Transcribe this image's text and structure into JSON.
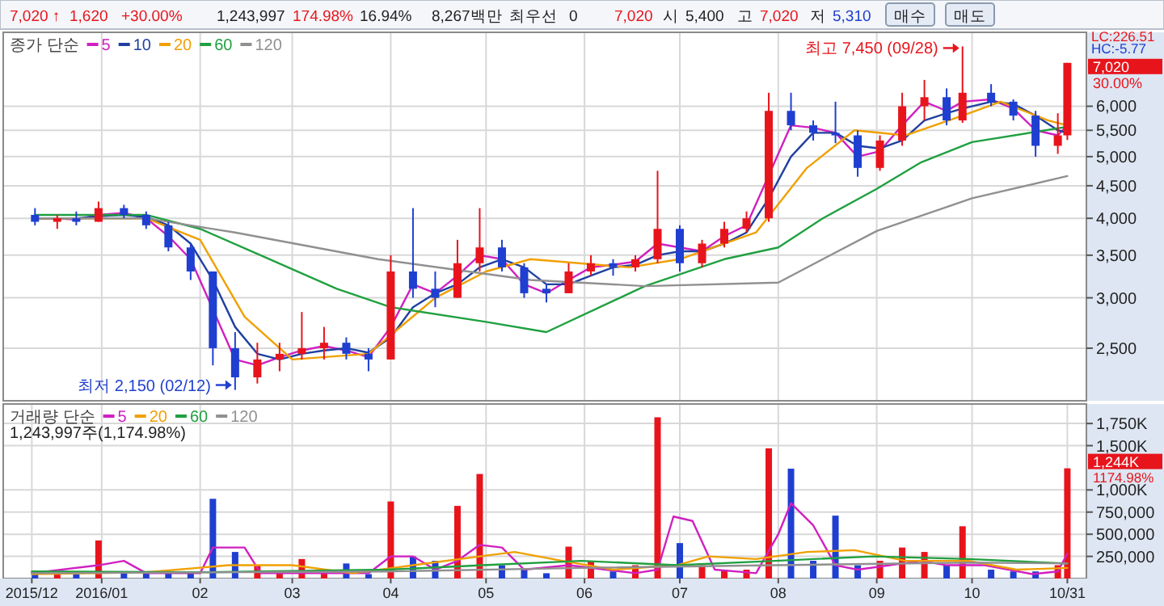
{
  "chart_data": [
    {
      "type": "candlestick",
      "legend_title": "종가 단순",
      "legend": "top left",
      "grid": true,
      "log": true,
      "tick_labels": "y",
      "xlim": [
        "2015-12-01",
        "2016-11-06"
      ],
      "xticks": [
        {
          "value": "2016-01-01",
          "label": null
        },
        {
          "value": "2016-02-01",
          "label": null
        },
        {
          "value": "2016-03-01",
          "label": null
        },
        {
          "value": "2016-04-01",
          "label": null
        },
        {
          "value": "2016-05-01",
          "label": null
        },
        {
          "value": "2016-06-01",
          "label": null
        },
        {
          "value": "2016-07-01",
          "label": null
        },
        {
          "value": "2016-08-01",
          "label": null
        },
        {
          "value": "2016-09-01",
          "label": null
        },
        {
          "value": "2016-10-01",
          "label": null
        }
      ],
      "ylim": [
        2067,
        7840
      ],
      "yticks": [
        {
          "value": 2500,
          "label": "2,500"
        },
        {
          "value": 3000,
          "label": "3,000"
        },
        {
          "value": 3500,
          "label": "3,500"
        },
        {
          "value": 4000,
          "label": "4,000"
        },
        {
          "value": 4500,
          "label": "4,500"
        },
        {
          "value": 5000,
          "label": "5,000"
        },
        {
          "value": 5500,
          "label": "5,500"
        },
        {
          "value": 6000,
          "label": "6,000"
        }
      ],
      "x": [
        "2015-12-11",
        "2015-12-18",
        "2015-12-24",
        "2015-12-31",
        "2016-01-08",
        "2016-01-15",
        "2016-01-22",
        "2016-01-29",
        "2016-02-05",
        "2016-02-12",
        "2016-02-19",
        "2016-02-26",
        "2016-03-04",
        "2016-03-11",
        "2016-03-18",
        "2016-03-25",
        "2016-04-01",
        "2016-04-08",
        "2016-04-15",
        "2016-04-22",
        "2016-04-29",
        "2016-05-06",
        "2016-05-13",
        "2016-05-20",
        "2016-05-27",
        "2016-06-03",
        "2016-06-10",
        "2016-06-17",
        "2016-06-24",
        "2016-07-01",
        "2016-07-08",
        "2016-07-15",
        "2016-07-22",
        "2016-07-29",
        "2016-08-05",
        "2016-08-12",
        "2016-08-19",
        "2016-08-26",
        "2016-09-02",
        "2016-09-09",
        "2016-09-16",
        "2016-09-23",
        "2016-09-28",
        "2016-10-07",
        "2016-10-14",
        "2016-10-21",
        "2016-10-28",
        "2016-10-31"
      ],
      "ohlc": [
        [
          4050,
          4150,
          3900,
          3950
        ],
        [
          3950,
          4050,
          3850,
          4000
        ],
        [
          4000,
          4100,
          3900,
          3950
        ],
        [
          3950,
          4250,
          3950,
          4150
        ],
        [
          4150,
          4200,
          4000,
          4050
        ],
        [
          4050,
          4100,
          3850,
          3900
        ],
        [
          3900,
          3950,
          3550,
          3600
        ],
        [
          3600,
          3650,
          3200,
          3300
        ],
        [
          3300,
          3300,
          2350,
          2500
        ],
        [
          2500,
          2650,
          2150,
          2250
        ],
        [
          2250,
          2550,
          2200,
          2400
        ],
        [
          2400,
          2550,
          2300,
          2450
        ],
        [
          2450,
          2850,
          2400,
          2500
        ],
        [
          2500,
          2700,
          2400,
          2550
        ],
        [
          2550,
          2600,
          2400,
          2450
        ],
        [
          2450,
          2500,
          2300,
          2400
        ],
        [
          2400,
          3500,
          2400,
          3300
        ],
        [
          3300,
          4150,
          3000,
          3100
        ],
        [
          3100,
          3300,
          2900,
          3000
        ],
        [
          3000,
          3700,
          3000,
          3400
        ],
        [
          3400,
          4150,
          3300,
          3600
        ],
        [
          3600,
          3700,
          3300,
          3350
        ],
        [
          3350,
          3400,
          3000,
          3050
        ],
        [
          3100,
          3150,
          2950,
          3050
        ],
        [
          3050,
          3400,
          3050,
          3300
        ],
        [
          3300,
          3500,
          3250,
          3400
        ],
        [
          3400,
          3450,
          3250,
          3350
        ],
        [
          3350,
          3500,
          3300,
          3450
        ],
        [
          3450,
          4750,
          3400,
          3850
        ],
        [
          3850,
          3900,
          3300,
          3400
        ],
        [
          3400,
          3700,
          3350,
          3650
        ],
        [
          3650,
          3950,
          3600,
          3850
        ],
        [
          3850,
          4100,
          3800,
          4000
        ],
        [
          4000,
          6300,
          3950,
          5900
        ],
        [
          5900,
          6300,
          5500,
          5600
        ],
        [
          5600,
          5700,
          5300,
          5450
        ],
        [
          5450,
          6100,
          5250,
          5400
        ],
        [
          5400,
          5500,
          4650,
          4800
        ],
        [
          4800,
          5400,
          4750,
          5300
        ],
        [
          5300,
          6300,
          5200,
          6000
        ],
        [
          6000,
          6600,
          5700,
          6200
        ],
        [
          6200,
          6400,
          5600,
          5700
        ],
        [
          5700,
          7450,
          5650,
          6300
        ],
        [
          6300,
          6500,
          6000,
          6100
        ],
        [
          6100,
          6150,
          5700,
          5800
        ],
        [
          5800,
          5900,
          5000,
          5200
        ],
        [
          5200,
          5850,
          5050,
          5400
        ],
        [
          5400,
          7020,
          5310,
          7020
        ]
      ],
      "colors": [
        "#1f3fd0",
        "#e8141c",
        "#1f3fd0",
        "#e8141c",
        "#1f3fd0",
        "#1f3fd0",
        "#1f3fd0",
        "#1f3fd0",
        "#1f3fd0",
        "#1f3fd0",
        "#e8141c",
        "#e8141c",
        "#e8141c",
        "#e8141c",
        "#1f3fd0",
        "#1f3fd0",
        "#e8141c",
        "#1f3fd0",
        "#1f3fd0",
        "#e8141c",
        "#e8141c",
        "#1f3fd0",
        "#1f3fd0",
        "#1f3fd0",
        "#e8141c",
        "#e8141c",
        "#1f3fd0",
        "#e8141c",
        "#e8141c",
        "#1f3fd0",
        "#e8141c",
        "#e8141c",
        "#e8141c",
        "#e8141c",
        "#1f3fd0",
        "#1f3fd0",
        "#1f3fd0",
        "#1f3fd0",
        "#e8141c",
        "#e8141c",
        "#e8141c",
        "#1f3fd0",
        "#e8141c",
        "#1f3fd0",
        "#1f3fd0",
        "#1f3fd0",
        "#e8141c",
        "#e8141c"
      ],
      "series": [
        {
          "name": "5",
          "type": "line",
          "color": "#d020c0",
          "x": [
            "2015-12-11",
            "2015-12-18",
            "2015-12-24",
            "2015-12-31",
            "2016-01-08",
            "2016-01-15",
            "2016-01-22",
            "2016-01-29",
            "2016-02-12",
            "2016-02-19",
            "2016-02-26",
            "2016-03-04",
            "2016-03-11",
            "2016-03-18",
            "2016-03-25",
            "2016-04-01",
            "2016-04-08",
            "2016-04-15",
            "2016-04-22",
            "2016-04-29",
            "2016-05-06",
            "2016-05-13",
            "2016-05-20",
            "2016-05-27",
            "2016-06-03",
            "2016-06-10",
            "2016-06-17",
            "2016-06-24",
            "2016-07-01",
            "2016-07-08",
            "2016-07-15",
            "2016-07-22",
            "2016-08-05",
            "2016-08-12",
            "2016-08-19",
            "2016-08-26",
            "2016-09-02",
            "2016-09-09",
            "2016-09-16",
            "2016-09-23",
            "2016-09-28",
            "2016-10-07",
            "2016-10-14",
            "2016-10-21",
            "2016-10-28",
            "2016-10-31"
          ],
          "values": [
            4000,
            4000,
            3980,
            4050,
            4080,
            4000,
            3750,
            3450,
            2400,
            2350,
            2420,
            2480,
            2520,
            2480,
            2420,
            2700,
            3150,
            3050,
            3250,
            3500,
            3450,
            3150,
            3050,
            3200,
            3350,
            3380,
            3420,
            3650,
            3600,
            3550,
            3750,
            3900,
            5600,
            5550,
            5450,
            5000,
            5100,
            5600,
            6100,
            5900,
            6100,
            6150,
            5950,
            5500,
            5400,
            5600
          ]
        },
        {
          "name": "10",
          "type": "line",
          "color": "#2040a0",
          "x": [
            "2015-12-11",
            "2015-12-18",
            "2015-12-24",
            "2015-12-31",
            "2016-01-08",
            "2016-01-15",
            "2016-01-22",
            "2016-01-29",
            "2016-02-05",
            "2016-02-12",
            "2016-02-19",
            "2016-02-26",
            "2016-03-04",
            "2016-03-11",
            "2016-03-18",
            "2016-03-25",
            "2016-04-01",
            "2016-04-08",
            "2016-04-15",
            "2016-04-22",
            "2016-04-29",
            "2016-05-06",
            "2016-05-13",
            "2016-05-20",
            "2016-05-27",
            "2016-06-03",
            "2016-06-10",
            "2016-06-17",
            "2016-06-24",
            "2016-07-01",
            "2016-07-08",
            "2016-07-15",
            "2016-07-22",
            "2016-07-29",
            "2016-08-05",
            "2016-08-12",
            "2016-08-19",
            "2016-08-26",
            "2016-09-02",
            "2016-09-09",
            "2016-09-16",
            "2016-09-23",
            "2016-09-28",
            "2016-10-07",
            "2016-10-14",
            "2016-10-21",
            "2016-10-28",
            "2016-10-31"
          ],
          "values": [
            4000,
            4000,
            4000,
            4030,
            4050,
            4020,
            3900,
            3650,
            3200,
            2700,
            2450,
            2400,
            2450,
            2480,
            2500,
            2460,
            2600,
            2900,
            3050,
            3150,
            3350,
            3450,
            3350,
            3150,
            3150,
            3250,
            3350,
            3380,
            3500,
            3550,
            3550,
            3650,
            3800,
            4300,
            5000,
            5450,
            5450,
            5200,
            5150,
            5300,
            5700,
            5850,
            5950,
            6100,
            6050,
            5800,
            5500,
            5450
          ]
        },
        {
          "name": "20",
          "type": "line",
          "color": "#f0a000",
          "x": [
            "2015-12-11",
            "2016-01-15",
            "2016-02-01",
            "2016-02-15",
            "2016-03-01",
            "2016-03-25",
            "2016-04-15",
            "2016-05-01",
            "2016-05-15",
            "2016-06-15",
            "2016-07-01",
            "2016-07-25",
            "2016-08-10",
            "2016-08-25",
            "2016-09-10",
            "2016-09-28",
            "2016-10-10",
            "2016-10-25",
            "2016-10-31"
          ],
          "values": [
            4000,
            4000,
            3700,
            2800,
            2400,
            2450,
            3000,
            3300,
            3450,
            3350,
            3450,
            3800,
            4800,
            5500,
            5400,
            5800,
            6100,
            5700,
            5600
          ]
        },
        {
          "name": "60",
          "type": "line",
          "color": "#20a040",
          "x": [
            "2015-12-11",
            "2016-01-15",
            "2016-02-01",
            "2016-02-20",
            "2016-03-15",
            "2016-04-01",
            "2016-05-01",
            "2016-05-20",
            "2016-06-20",
            "2016-07-15",
            "2016-08-01",
            "2016-08-15",
            "2016-09-01",
            "2016-09-15",
            "2016-10-01",
            "2016-10-31"
          ],
          "values": [
            4050,
            4050,
            3850,
            3500,
            3100,
            2900,
            2750,
            2650,
            3130,
            3450,
            3600,
            4000,
            4450,
            4900,
            5270,
            5570
          ]
        },
        {
          "name": "120",
          "type": "line",
          "color": "#909090",
          "x": [
            "2015-12-11",
            "2016-01-15",
            "2016-02-12",
            "2016-03-28",
            "2016-05-15",
            "2016-06-20",
            "2016-08-01",
            "2016-08-15",
            "2016-09-01",
            "2016-10-01",
            "2016-10-31"
          ],
          "values": [
            4000,
            4000,
            3800,
            3450,
            3200,
            3130,
            3170,
            3450,
            3820,
            4300,
            4660
          ]
        }
      ],
      "annotations": [
        "7,020 ↑",
        "1,620",
        "+30.00%",
        "1,243,997",
        "174.98%",
        "16.94%",
        "8,267백만",
        "최우선",
        "0",
        "7,020",
        "시",
        "5,400",
        "고",
        "7,020",
        "저",
        "5,310",
        "매수",
        "매도",
        "LC:226.51",
        "HC:-5.77",
        "7,020",
        "30.00%",
        {
          "text": "최고 7,450 (09/28)",
          "x": "2016-09-28",
          "y": 7450
        },
        {
          "text": "최저 2,150 (02/12)",
          "x": "2016-02-12",
          "y": 2150
        }
      ]
    },
    {
      "type": "bar",
      "legend_title": "거래량 단순",
      "legend": "top left",
      "grid": true,
      "xlim": [
        "2015-12-01",
        "2016-11-06"
      ],
      "xticks": [
        {
          "value": "2015-12-10",
          "label": "2015/12"
        },
        {
          "value": "2016-01-01",
          "label": "2016/01"
        },
        {
          "value": "2016-02-01",
          "label": "02"
        },
        {
          "value": "2016-03-01",
          "label": "03"
        },
        {
          "value": "2016-04-01",
          "label": "04"
        },
        {
          "value": "2016-05-01",
          "label": "05"
        },
        {
          "value": "2016-06-01",
          "label": "06"
        },
        {
          "value": "2016-07-01",
          "label": "07"
        },
        {
          "value": "2016-08-01",
          "label": "08"
        },
        {
          "value": "2016-09-01",
          "label": "09"
        },
        {
          "value": "2016-10-01",
          "label": "10"
        },
        {
          "value": "2016-10-31",
          "label": "10/31"
        }
      ],
      "ylim": [
        0,
        1970000
      ],
      "yticks": [
        {
          "value": 250000,
          "label": "250,000"
        },
        {
          "value": 500000,
          "label": "500,000"
        },
        {
          "value": 750000,
          "label": "750,000"
        },
        {
          "value": 1000000,
          "label": "1,000K"
        },
        {
          "value": 1500000,
          "label": "1,500K"
        },
        {
          "value": 1750000,
          "label": "1,750K"
        }
      ],
      "x": [
        "2015-12-11",
        "2015-12-18",
        "2015-12-24",
        "2015-12-31",
        "2016-01-08",
        "2016-01-15",
        "2016-01-22",
        "2016-01-29",
        "2016-02-05",
        "2016-02-12",
        "2016-02-19",
        "2016-02-26",
        "2016-03-04",
        "2016-03-11",
        "2016-03-18",
        "2016-03-25",
        "2016-04-01",
        "2016-04-08",
        "2016-04-15",
        "2016-04-22",
        "2016-04-29",
        "2016-05-06",
        "2016-05-13",
        "2016-05-20",
        "2016-05-27",
        "2016-06-03",
        "2016-06-10",
        "2016-06-17",
        "2016-06-24",
        "2016-07-01",
        "2016-07-08",
        "2016-07-15",
        "2016-07-22",
        "2016-07-29",
        "2016-08-05",
        "2016-08-12",
        "2016-08-19",
        "2016-08-26",
        "2016-09-02",
        "2016-09-09",
        "2016-09-16",
        "2016-09-23",
        "2016-09-28",
        "2016-10-07",
        "2016-10-14",
        "2016-10-21",
        "2016-10-28",
        "2016-10-31"
      ],
      "series": [
        {
          "type": "bar",
          "values": [
            60000,
            50000,
            50000,
            430000,
            80000,
            60000,
            70000,
            80000,
            900000,
            300000,
            150000,
            80000,
            220000,
            60000,
            170000,
            50000,
            870000,
            250000,
            200000,
            820000,
            1180000,
            150000,
            100000,
            60000,
            360000,
            200000,
            80000,
            150000,
            1820000,
            400000,
            150000,
            100000,
            100000,
            1470000,
            1240000,
            200000,
            710000,
            150000,
            200000,
            350000,
            300000,
            150000,
            590000,
            100000,
            80000,
            80000,
            150000,
            1243997
          ],
          "colors": [
            "#1f3fd0",
            "#e8141c",
            "#1f3fd0",
            "#e8141c",
            "#1f3fd0",
            "#1f3fd0",
            "#1f3fd0",
            "#1f3fd0",
            "#1f3fd0",
            "#1f3fd0",
            "#e8141c",
            "#e8141c",
            "#e8141c",
            "#e8141c",
            "#1f3fd0",
            "#1f3fd0",
            "#e8141c",
            "#1f3fd0",
            "#1f3fd0",
            "#e8141c",
            "#e8141c",
            "#1f3fd0",
            "#1f3fd0",
            "#1f3fd0",
            "#e8141c",
            "#e8141c",
            "#1f3fd0",
            "#e8141c",
            "#e8141c",
            "#1f3fd0",
            "#e8141c",
            "#e8141c",
            "#e8141c",
            "#e8141c",
            "#1f3fd0",
            "#1f3fd0",
            "#1f3fd0",
            "#1f3fd0",
            "#e8141c",
            "#e8141c",
            "#e8141c",
            "#1f3fd0",
            "#e8141c",
            "#1f3fd0",
            "#1f3fd0",
            "#1f3fd0",
            "#e8141c",
            "#e8141c"
          ]
        },
        {
          "name": "5",
          "type": "line",
          "color": "#d020c0",
          "x": [
            "2015-12-10",
            "2015-12-31",
            "2016-01-08",
            "2016-01-15",
            "2016-02-01",
            "2016-02-05",
            "2016-02-15",
            "2016-02-20",
            "2016-03-25",
            "2016-04-01",
            "2016-04-08",
            "2016-04-15",
            "2016-04-22",
            "2016-04-29",
            "2016-05-06",
            "2016-05-13",
            "2016-05-27",
            "2016-06-17",
            "2016-06-24",
            "2016-06-29",
            "2016-07-05",
            "2016-07-12",
            "2016-07-25",
            "2016-08-01",
            "2016-08-05",
            "2016-08-12",
            "2016-08-19",
            "2016-08-26",
            "2016-09-15",
            "2016-09-23",
            "2016-10-05",
            "2016-10-20",
            "2016-10-28",
            "2016-10-31"
          ],
          "values": [
            60000,
            150000,
            200000,
            60000,
            60000,
            350000,
            350000,
            60000,
            60000,
            250000,
            250000,
            100000,
            200000,
            380000,
            350000,
            100000,
            150000,
            60000,
            100000,
            700000,
            650000,
            100000,
            60000,
            500000,
            850000,
            600000,
            150000,
            100000,
            200000,
            150000,
            150000,
            50000,
            80000,
            280000
          ]
        },
        {
          "name": "20",
          "type": "line",
          "color": "#f0a000",
          "x": [
            "2015-12-10",
            "2016-01-15",
            "2016-02-10",
            "2016-03-01",
            "2016-03-20",
            "2016-04-08",
            "2016-04-29",
            "2016-05-10",
            "2016-05-25",
            "2016-06-10",
            "2016-06-30",
            "2016-07-10",
            "2016-07-25",
            "2016-08-10",
            "2016-08-25",
            "2016-09-10",
            "2016-09-30",
            "2016-10-15",
            "2016-10-31"
          ],
          "values": [
            50000,
            70000,
            150000,
            150000,
            60000,
            150000,
            250000,
            300000,
            200000,
            100000,
            150000,
            250000,
            220000,
            300000,
            320000,
            200000,
            200000,
            100000,
            120000
          ]
        },
        {
          "name": "60",
          "type": "line",
          "color": "#20a040",
          "x": [
            "2015-12-10",
            "2016-01-31",
            "2016-03-31",
            "2016-04-30",
            "2016-05-31",
            "2016-06-30",
            "2016-07-31",
            "2016-08-31",
            "2016-09-30",
            "2016-10-31"
          ],
          "values": [
            80000,
            70000,
            100000,
            150000,
            200000,
            150000,
            200000,
            250000,
            220000,
            170000
          ]
        },
        {
          "name": "120",
          "type": "line",
          "color": "#909090",
          "x": [
            "2015-12-10",
            "2016-03-31",
            "2016-05-31",
            "2016-07-31",
            "2016-09-30",
            "2016-10-31"
          ],
          "values": [
            60000,
            80000,
            120000,
            150000,
            180000,
            170000
          ]
        }
      ],
      "annotations": [
        "1,243,997주(1,174.98%)",
        "1,244K",
        "1174.98%"
      ]
    }
  ]
}
